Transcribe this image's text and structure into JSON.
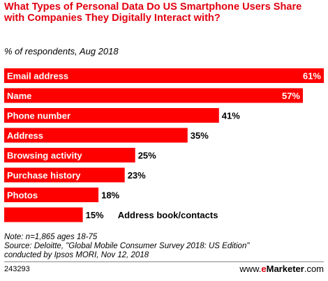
{
  "chart_data": {
    "type": "bar",
    "orientation": "horizontal",
    "title": "What Types of Personal Data Do US Smartphone Users Share with Companies They Digitally Interact with?",
    "subtitle": "% of respondents, Aug 2018",
    "categories": [
      "Email address",
      "Name",
      "Phone number",
      "Address",
      "Browsing activity",
      "Purchase history",
      "Photos",
      "Address book/contacts"
    ],
    "values": [
      61,
      57,
      41,
      35,
      25,
      23,
      18,
      15
    ],
    "value_suffix": "%",
    "xlim": [
      0,
      61
    ],
    "grid": false,
    "bar_color": "#ff0000"
  },
  "footer": {
    "note": "Note: n=1,865 ages 18-75",
    "source_line1": "Source: Deloitte, \"Global Mobile Consumer Survey 2018: US Edition\"",
    "source_line2": "conducted by Ipsos MORI, Nov 12, 2018",
    "chart_id": "243293",
    "brand_prefix": "www.",
    "brand_e": "e",
    "brand_name": "Marketer",
    "brand_suffix": ".com"
  }
}
